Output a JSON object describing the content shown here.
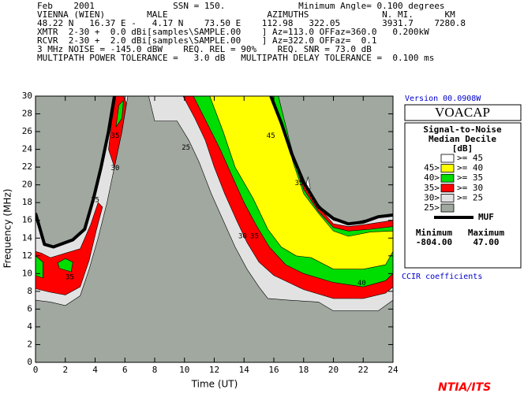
{
  "chart_data": {
    "type": "contour",
    "header": [
      "Feb    2001               SSN = 150.              Minimum Angle= 0.100 degrees",
      "VIENNA (WIEN)        MALE                   AZIMUTHS              N. MI.      KM",
      "48.22 N   16.37 E -   4.17 N    73.50 E    112.98   322.05        3931.7    7280.8",
      "XMTR  2-30 +  0.0 dBi[samples\\SAMPLE.00    ] Az=113.0 OFFaz=360.0   0.200kW",
      "RCVR  2-30 +  2.0 dBi[samples\\SAMPLE.00    ] Az=322.0 OFFaz=  0.1",
      "3 MHz NOISE = -145.0 dBW    REQ. REL = 90%    REQ. SNR = 73.0 dB",
      "MULTIPATH POWER TOLERANCE =   3.0 dB   MULTIPATH DELAY TOLERANCE =  0.100 ms"
    ],
    "version": "Version 00.0908W",
    "program": "VOACAP",
    "legend_title": [
      "Signal-to-Noise",
      "Median Decile",
      "[dB]"
    ],
    "footnote": "CCIR coefficients",
    "brand": "NTIA/ITS",
    "xlabel": "Time (UT)",
    "ylabel": "Frequency (MHz)",
    "xlim": [
      0,
      24
    ],
    "ylim": [
      0,
      30
    ],
    "xticks": [
      0,
      2,
      4,
      6,
      8,
      10,
      12,
      14,
      16,
      18,
      20,
      22,
      24
    ],
    "yticks": [
      0,
      2,
      4,
      6,
      8,
      10,
      12,
      14,
      16,
      18,
      20,
      22,
      24,
      26,
      28,
      30
    ],
    "background": "#a0a8a0",
    "legend": [
      {
        "label": ">=  45",
        "color": "#ffffff"
      },
      {
        "prefix": "45>",
        "label": ">=  40",
        "color": "#ffff00"
      },
      {
        "prefix": "40>",
        "label": ">=  35",
        "color": "#00dd00"
      },
      {
        "prefix": "35>",
        "label": ">=  30",
        "color": "#ff0000"
      },
      {
        "prefix": "30>",
        "label": ">=  25",
        "color": "#e2e2e2"
      },
      {
        "prefix": "25>",
        "color": "#a0a8a0"
      }
    ],
    "levels": [
      {
        "value": 25,
        "color": "#e2e2e2",
        "polygons": [
          {
            "x": [
              0,
              1,
              2,
              3,
              3.6,
              4.2,
              4.8,
              5.3,
              5.8,
              6.2,
              5.3,
              4.9,
              4.4,
              3.9,
              3.3,
              2.5,
              1.2,
              0.6,
              0
            ],
            "y": [
              7,
              6.8,
              6.4,
              7.5,
              10.5,
              14,
              18,
              22,
              26,
              30,
              30,
              26,
              22,
              18.5,
              15,
              13.8,
              13,
              13.3,
              16.8
            ]
          },
          {
            "x": [
              7.6,
              8,
              9.5,
              10.3,
              11,
              11.8,
              12.6,
              13.4,
              14.2,
              15,
              15.6,
              17,
              19,
              20,
              23,
              24,
              24,
              23,
              22,
              21,
              20,
              19,
              18,
              17.3,
              16.7,
              16.2
            ],
            "y": [
              30,
              27.2,
              27.2,
              25,
              22.5,
              19,
              16,
              13,
              10.5,
              8.5,
              7.2,
              7,
              6.8,
              5.8,
              5.8,
              7,
              16.6,
              16.3,
              16,
              15.6,
              16,
              17.8,
              20.5,
              23.5,
              27,
              30
            ]
          }
        ]
      },
      {
        "value": 30,
        "color": "#ff0000",
        "polygons": [
          {
            "x": [
              0,
              1,
              2,
              3,
              3.6,
              4.1,
              4.5,
              4.2,
              3.7,
              3,
              2,
              1,
              0.4,
              0
            ],
            "y": [
              8.3,
              7.9,
              7.6,
              8.5,
              11.5,
              15,
              17.5,
              18,
              15.5,
              12.8,
              12.3,
              11.8,
              12.3,
              12.5
            ]
          },
          {
            "x": [
              4.9,
              5.3,
              5.8,
              6.1,
              5.9,
              5.4,
              5.1
            ],
            "y": [
              24,
              22,
              26,
              29.2,
              30,
              30,
              27
            ]
          },
          {
            "x": [
              9.9,
              10.7,
              11.4,
              12,
              12.7,
              13.5,
              14.2,
              15,
              16,
              17,
              18,
              20,
              22,
              23.5,
              24,
              24,
              22,
              21,
              20,
              19,
              18,
              17.3,
              16.8,
              16.3
            ],
            "y": [
              30,
              27.5,
              25,
              22,
              19,
              16,
              13.5,
              11.3,
              9.8,
              9,
              8.2,
              7.2,
              7.2,
              7.8,
              8.5,
              16,
              15.5,
              15.3,
              15.6,
              17.5,
              20,
              23,
              26.5,
              30
            ]
          }
        ]
      },
      {
        "value": 35,
        "color": "#00dd00",
        "polygons": [
          {
            "x": [
              0,
              0.5,
              0.5,
              0
            ],
            "y": [
              9.8,
              9.5,
              11.3,
              12
            ]
          },
          {
            "x": [
              1.6,
              2.4,
              2.5,
              2,
              1.5
            ],
            "y": [
              10.6,
              10.2,
              11.3,
              11.7,
              11.2
            ]
          },
          {
            "x": [
              5.4,
              5.8,
              5.9,
              5.6
            ],
            "y": [
              26.5,
              27.5,
              29.5,
              29
            ]
          },
          {
            "x": [
              10.6,
              11.5,
              12.4,
              13.2,
              14,
              14.8,
              15.7,
              16.8,
              18,
              20,
              22,
              23.5,
              24,
              24,
              22.5,
              21,
              20,
              19,
              18,
              17.4,
              16.9,
              16.3
            ],
            "y": [
              30,
              27,
              24,
              21,
              18,
              15.5,
              13,
              11,
              10,
              9,
              8.5,
              9.2,
              10,
              15.3,
              15,
              14.8,
              15.2,
              17,
              19.5,
              22.5,
              26,
              30
            ]
          }
        ]
      },
      {
        "value": 40,
        "color": "#ffff00",
        "polygons": [
          {
            "x": [
              11.7,
              12.6,
              13.4,
              14.6,
              15.6,
              16.5,
              17.5,
              18.5,
              20,
              22,
              23.5,
              24,
              24,
              22.5,
              21,
              20,
              19,
              18,
              17.3,
              16.8,
              16.2,
              15.8
            ],
            "y": [
              30,
              26,
              22,
              18.5,
              15,
              13,
              12,
              11.8,
              10.5,
              10.5,
              11,
              12.5,
              14.8,
              14.7,
              14.2,
              14.8,
              16.8,
              19,
              22.5,
              25.5,
              28,
              30
            ]
          }
        ]
      },
      {
        "value": 45,
        "color": "#ffffff",
        "polygons": [
          {
            "x": [
              18.1,
              18.3,
              18.45,
              18.15
            ],
            "y": [
              19.6,
              20.9,
              19.6,
              19.4
            ]
          }
        ]
      }
    ],
    "muf": {
      "color": "#000000",
      "label": "MUF",
      "x": [
        0,
        0.6,
        1.2,
        2.5,
        3.3,
        3.9,
        4.4,
        4.9,
        5.3,
        null,
        15.8,
        16.5,
        17.2,
        18,
        19,
        20,
        21,
        22,
        23,
        24
      ],
      "y": [
        16.8,
        13.3,
        13,
        13.8,
        15,
        18.5,
        22,
        26,
        30,
        null,
        30,
        27,
        23.5,
        20.3,
        17.5,
        16.2,
        15.6,
        15.8,
        16.4,
        16.6
      ]
    },
    "contour_labels": [
      {
        "text": "25",
        "x": 10.1,
        "y": 24.2
      },
      {
        "text": "30",
        "x": 13.9,
        "y": 14.2
      },
      {
        "text": "35",
        "x": 14.7,
        "y": 14.2
      },
      {
        "text": "40",
        "x": 21.9,
        "y": 8.9
      },
      {
        "text": "35",
        "x": 2.3,
        "y": 9.6
      },
      {
        "text": "45",
        "x": 15.8,
        "y": 25.5
      },
      {
        "text": "35",
        "x": 17.7,
        "y": 20.2
      },
      {
        "text": "25",
        "x": 4,
        "y": 18.3
      },
      {
        "text": "30",
        "x": 5.35,
        "y": 21.9
      },
      {
        "text": "35",
        "x": 5.35,
        "y": 25.5
      }
    ],
    "stats": {
      "labels": [
        "Minimum",
        "Maximum"
      ],
      "values": [
        -804,
        47
      ],
      "value_labels": [
        "-804.00",
        "47.00"
      ]
    }
  }
}
